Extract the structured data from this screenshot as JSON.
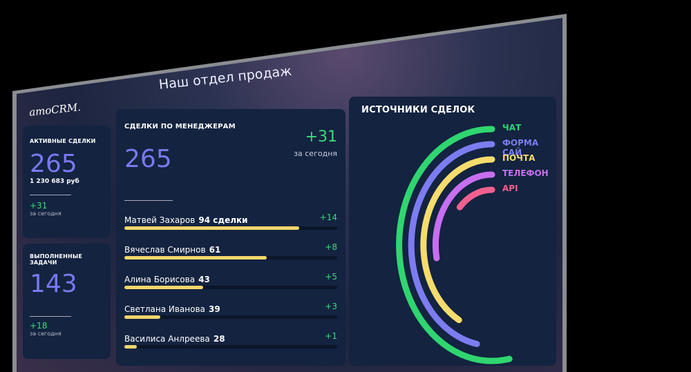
{
  "title": "Наш отдел продаж",
  "logo": "amoCRM.",
  "active_deals": {
    "label": "АКТИВНЫЕ СДЕЛКИ",
    "value": "265",
    "amount": "1 230 683 руб",
    "delta": "+31",
    "delta_label": "за сегодня"
  },
  "tasks": {
    "label": "ВЫПОЛНЕННЫЕ ЗАДАЧИ",
    "value": "143",
    "delta": "+18",
    "delta_label": "за сегодня"
  },
  "managers": {
    "label": "СДЕЛКИ ПО МЕНЕДЖЕРАМ",
    "value": "265",
    "delta": "+31",
    "delta_label": "за сегодня",
    "rows": [
      {
        "name": "Матвей Захаров",
        "count": "94 сделки",
        "delta": "+14",
        "progress": 0.82
      },
      {
        "name": "Вячеслав Смирнов",
        "count": "61",
        "delta": "+8",
        "progress": 0.67
      },
      {
        "name": "Алина Борисова",
        "count": "43",
        "delta": "+5",
        "progress": 0.37
      },
      {
        "name": "Светлана Иванова",
        "count": "39",
        "delta": "+3",
        "progress": 0.17
      },
      {
        "name": "Василиса Анлреева",
        "count": "28",
        "delta": "+1",
        "progress": 0.06
      }
    ]
  },
  "sources": {
    "label": "ИСТОЧНИКИ СДЕЛОК",
    "items": [
      {
        "name": "ЧАТ",
        "color": "#2fd66f",
        "level": 0.53
      },
      {
        "name": "ФОРМА САЙ",
        "color": "#7d7cf0",
        "level": 0.47
      },
      {
        "name": "ПОЧТА",
        "color": "#f5dc6c",
        "level": 0.42
      },
      {
        "name": "ТЕЛЕФОН",
        "color": "#c86ef0",
        "level": 0.28
      },
      {
        "name": "API",
        "color": "#f0608e",
        "level": 0.13
      }
    ]
  }
}
